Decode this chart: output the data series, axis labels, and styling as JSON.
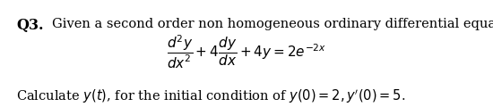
{
  "background_color": "#ffffff",
  "text_color": "#000000",
  "q_label": "Q3.",
  "line1": "Given a second order non homogeneous ordinary differential equation",
  "ode_equation": "$\\dfrac{d^2y}{dx^2} + 4\\dfrac{dy}{dx} + 4y = 2e^{-2x}$",
  "line3": "Calculate $y(t)$, for the initial condition of $y(0) = 2, y'(0) = 5$.",
  "fontsize_body": 10.5,
  "fontsize_q": 11.5,
  "fontsize_eq": 11.0
}
